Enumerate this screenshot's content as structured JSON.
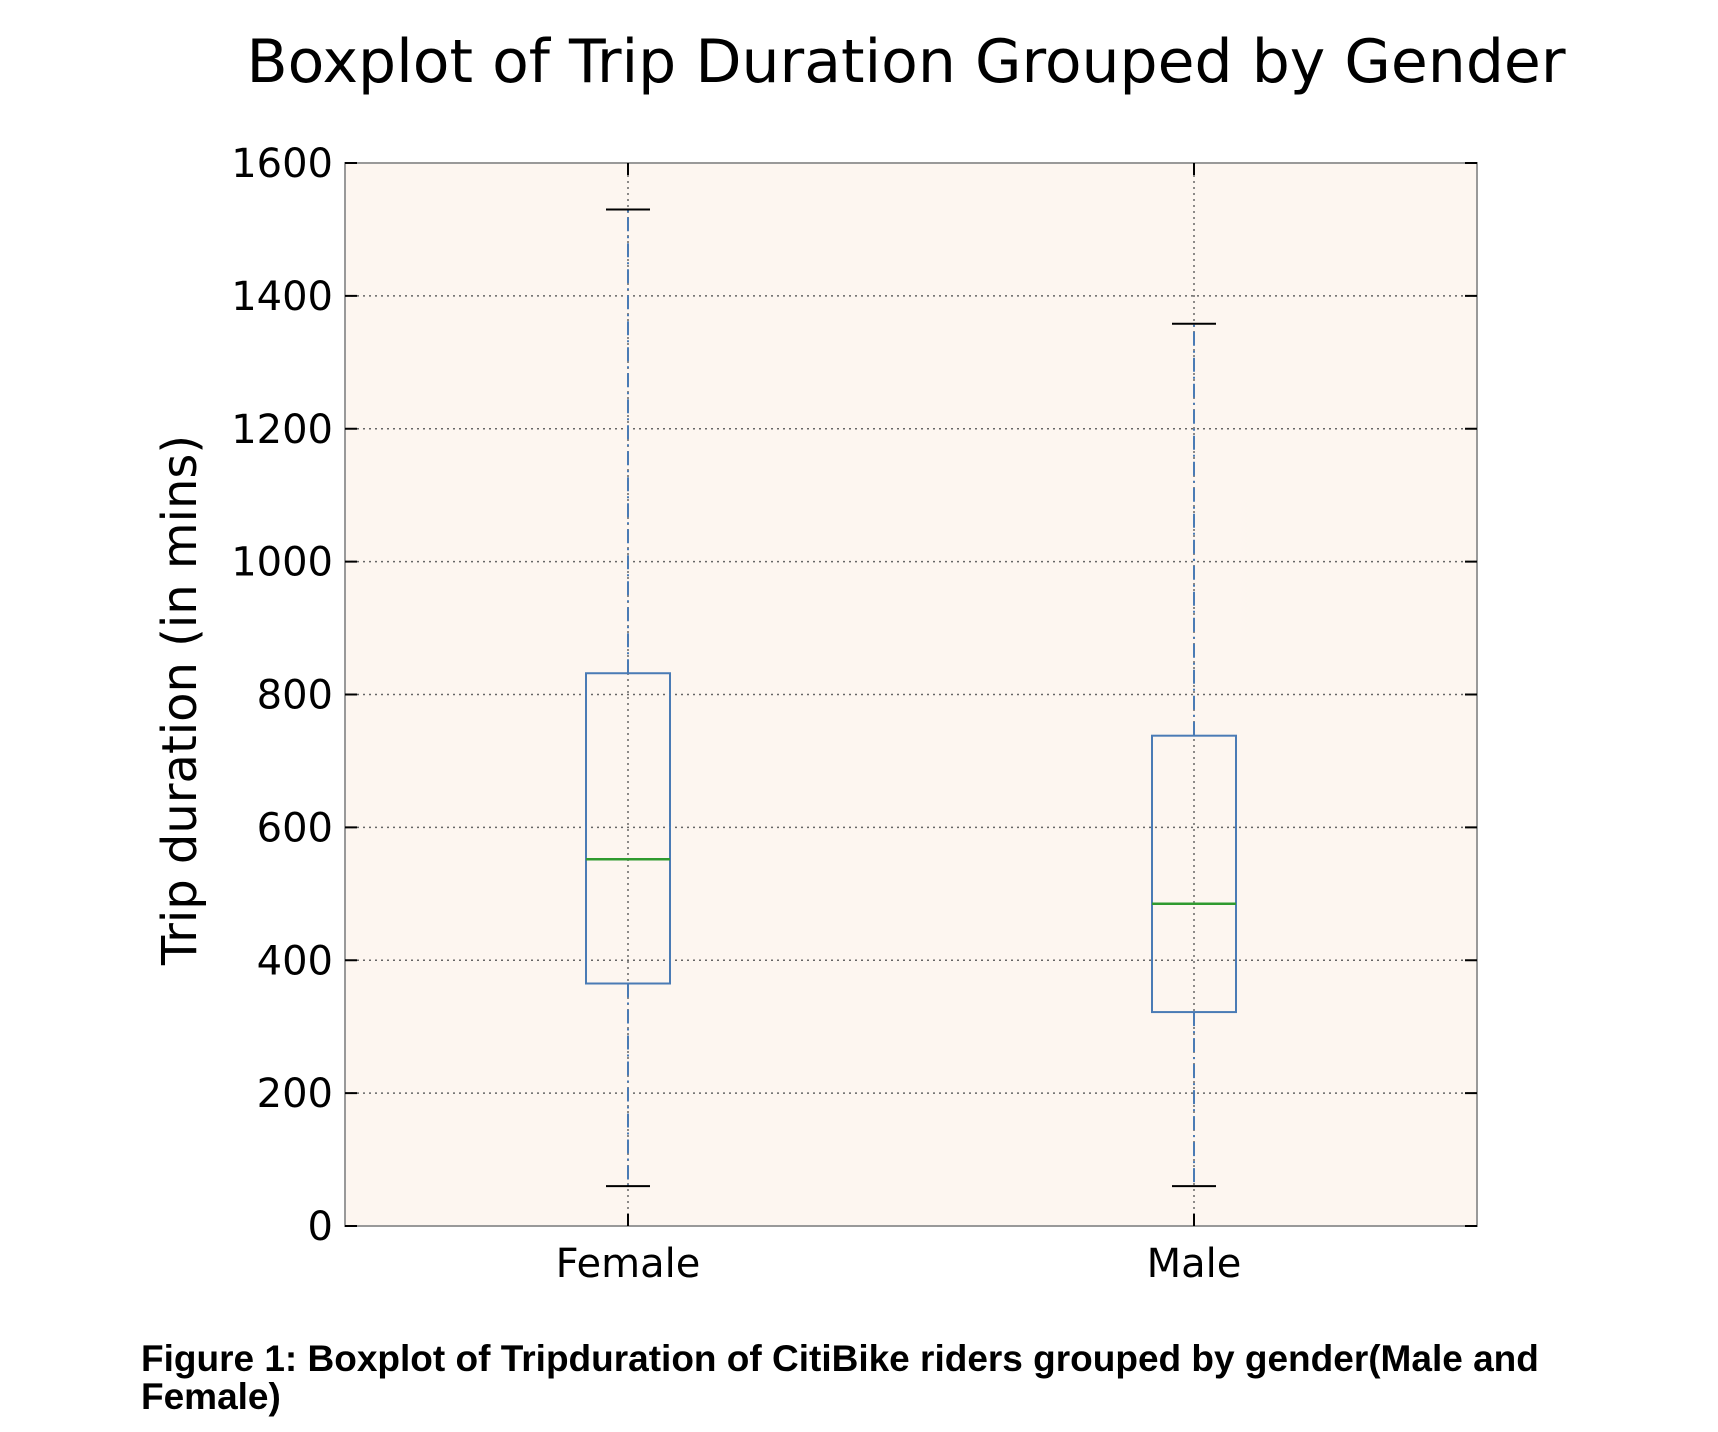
{
  "chart_data": {
    "type": "boxplot",
    "title": "Boxplot of Trip Duration Grouped by Gender",
    "xlabel": "",
    "ylabel": "Trip duration (in mins)",
    "ylim": [
      0,
      1600
    ],
    "yticks": [
      0,
      200,
      400,
      600,
      800,
      1000,
      1200,
      1400,
      1600
    ],
    "grid": true,
    "categories": [
      "Female",
      "Male"
    ],
    "boxes": [
      {
        "category": "Female",
        "whisker_low": 60,
        "q1": 365,
        "median": 552,
        "q3": 832,
        "whisker_high": 1530
      },
      {
        "category": "Male",
        "whisker_low": 60,
        "q1": 322,
        "median": 485,
        "q3": 738,
        "whisker_high": 1358
      }
    ],
    "colors": {
      "background": "#fdf6f0",
      "box": "#4a7bb5",
      "median": "#2f9a2f",
      "grid": "#666666",
      "axes": "#999999",
      "cap": "#000000"
    }
  },
  "caption": "Figure 1: Boxplot of Tripduration of CitiBike riders grouped by gender(Male and Female)"
}
